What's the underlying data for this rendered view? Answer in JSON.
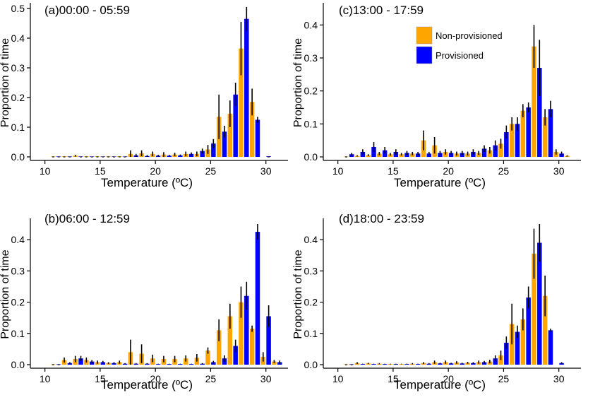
{
  "chart_data": [
    {
      "type": "bar",
      "panel_label": "(a)",
      "title": "00:00 - 05:59",
      "xlabel": "Temperature (ºC)",
      "ylabel": "Proportion of time",
      "xlim": [
        9,
        32
      ],
      "ylim": [
        0,
        0.5
      ],
      "xticks": [
        "10",
        "15",
        "20",
        "25",
        "30"
      ],
      "yticks": [
        "0.0",
        "0.1",
        "0.2",
        "0.3",
        "0.4",
        "0.5"
      ],
      "series": [
        {
          "name": "Non-provisioned",
          "color": "#FFA500",
          "x": [
            10.75,
            11.75,
            12.75,
            13.75,
            14.75,
            15.75,
            16.75,
            17.75,
            18.75,
            19.75,
            20.75,
            21.75,
            22.75,
            23.75,
            24.75,
            25.75,
            26.75,
            27.75,
            28.75
          ],
          "values": [
            0.0,
            0.002,
            0.004,
            0.002,
            0.002,
            0.002,
            0.002,
            0.01,
            0.012,
            0.01,
            0.008,
            0.008,
            0.01,
            0.01,
            0.025,
            0.135,
            0.145,
            0.365,
            0.185
          ],
          "err": [
            0,
            0,
            0.003,
            0,
            0,
            0,
            0,
            0.012,
            0.01,
            0.008,
            0.008,
            0.006,
            0.008,
            0.008,
            0.015,
            0.075,
            0.045,
            0.09,
            0.045
          ]
        },
        {
          "name": "Provisioned",
          "color": "#0000FF",
          "x": [
            11.25,
            12.25,
            13.25,
            14.25,
            15.25,
            16.25,
            17.25,
            18.25,
            19.25,
            20.25,
            21.25,
            22.25,
            23.25,
            24.25,
            25.25,
            26.25,
            27.25,
            28.25,
            29.25,
            30.25
          ],
          "values": [
            0.0,
            0.0,
            0.0,
            0.0,
            0.0,
            0.0,
            0.0,
            0.005,
            0.003,
            0.004,
            0.004,
            0.005,
            0.01,
            0.02,
            0.045,
            0.085,
            0.21,
            0.465,
            0.125,
            0.002
          ],
          "err": [
            0,
            0,
            0,
            0,
            0,
            0,
            0,
            0.005,
            0.003,
            0.003,
            0.003,
            0.003,
            0.005,
            0.008,
            0.015,
            0.02,
            0.04,
            0.04,
            0.01,
            0
          ]
        }
      ]
    },
    {
      "type": "bar",
      "panel_label": "(b)",
      "title": "06:00 - 12:59",
      "xlabel": "Temperature (ºC)",
      "ylabel": "Proportion of time",
      "xlim": [
        9,
        32
      ],
      "ylim": [
        0,
        0.45
      ],
      "xticks": [
        "10",
        "15",
        "20",
        "25",
        "30"
      ],
      "yticks": [
        "0.0",
        "0.1",
        "0.2",
        "0.3",
        "0.4"
      ],
      "series": [
        {
          "name": "Non-provisioned",
          "color": "#FFA500",
          "x": [
            10.75,
            11.75,
            12.75,
            13.75,
            14.75,
            15.75,
            16.75,
            17.75,
            18.75,
            19.75,
            20.75,
            21.75,
            22.75,
            23.75,
            24.75,
            25.75,
            26.75,
            27.75,
            28.75,
            29.75,
            30.75
          ],
          "values": [
            0.0,
            0.015,
            0.018,
            0.015,
            0.008,
            0.005,
            0.008,
            0.04,
            0.035,
            0.02,
            0.018,
            0.018,
            0.02,
            0.022,
            0.045,
            0.11,
            0.155,
            0.2,
            0.115,
            0.025,
            0.01
          ],
          "err": [
            0,
            0.008,
            0.01,
            0.008,
            0.005,
            0.003,
            0.005,
            0.04,
            0.03,
            0.012,
            0.01,
            0.01,
            0.01,
            0.012,
            0.01,
            0.035,
            0.04,
            0.05,
            0.01,
            0.015,
            0.005
          ]
        },
        {
          "name": "Provisioned",
          "color": "#0000FF",
          "x": [
            11.25,
            12.25,
            13.25,
            14.25,
            15.25,
            16.25,
            17.25,
            18.25,
            19.25,
            20.25,
            21.25,
            22.25,
            23.25,
            24.25,
            25.25,
            26.25,
            27.25,
            28.25,
            29.25,
            30.25,
            31.25
          ],
          "values": [
            0.0,
            0.005,
            0.02,
            0.01,
            0.008,
            0.005,
            0.003,
            0.003,
            0.003,
            0.002,
            0.002,
            0.002,
            0.002,
            0.003,
            0.008,
            0.02,
            0.06,
            0.22,
            0.425,
            0.155,
            0.008
          ],
          "err": [
            0,
            0.003,
            0.008,
            0.005,
            0.004,
            0.003,
            0.002,
            0.002,
            0.002,
            0.001,
            0.001,
            0.001,
            0.001,
            0.002,
            0.004,
            0.01,
            0.02,
            0.045,
            0.025,
            0.035,
            0.005
          ]
        }
      ]
    },
    {
      "type": "bar",
      "panel_label": "(c)",
      "title": "13:00 - 17:59",
      "xlabel": "Temperature (ºC)",
      "ylabel": "Proportion of time",
      "xlim": [
        9,
        32
      ],
      "ylim": [
        0,
        0.45
      ],
      "xticks": [
        "10",
        "15",
        "20",
        "25",
        "30"
      ],
      "yticks": [
        "0.0",
        "0.1",
        "0.2",
        "0.3",
        "0.4"
      ],
      "legend": {
        "position": "top-center",
        "entries": [
          "Non-provisioned",
          "Provisioned"
        ]
      },
      "series": [
        {
          "name": "Non-provisioned",
          "color": "#FFA500",
          "x": [
            10.75,
            11.75,
            12.75,
            13.75,
            14.75,
            15.75,
            16.75,
            17.75,
            18.75,
            19.75,
            20.75,
            21.75,
            22.75,
            23.75,
            24.75,
            25.75,
            26.75,
            27.75,
            28.75,
            29.75,
            30.75
          ],
          "values": [
            0.0,
            0.003,
            0.005,
            0.01,
            0.008,
            0.008,
            0.01,
            0.05,
            0.035,
            0.015,
            0.01,
            0.01,
            0.012,
            0.02,
            0.04,
            0.1,
            0.14,
            0.335,
            0.12,
            0.015,
            0.003
          ],
          "err": [
            0,
            0.002,
            0.003,
            0.005,
            0.004,
            0.004,
            0.005,
            0.03,
            0.025,
            0.008,
            0.006,
            0.006,
            0.006,
            0.01,
            0.015,
            0.02,
            0.02,
            0.065,
            0.025,
            0.008,
            0.002
          ]
        },
        {
          "name": "Provisioned",
          "color": "#0000FF",
          "x": [
            11.25,
            12.25,
            13.25,
            14.25,
            15.25,
            16.25,
            17.25,
            18.25,
            19.25,
            20.25,
            21.25,
            22.25,
            23.25,
            24.25,
            25.25,
            26.25,
            27.25,
            28.25,
            29.25,
            30.25
          ],
          "values": [
            0.008,
            0.015,
            0.03,
            0.02,
            0.015,
            0.012,
            0.01,
            0.01,
            0.012,
            0.012,
            0.012,
            0.015,
            0.025,
            0.035,
            0.075,
            0.1,
            0.15,
            0.27,
            0.145,
            0.01
          ],
          "err": [
            0.004,
            0.008,
            0.015,
            0.01,
            0.008,
            0.006,
            0.005,
            0.005,
            0.006,
            0.006,
            0.006,
            0.008,
            0.01,
            0.015,
            0.02,
            0.02,
            0.015,
            0.085,
            0.025,
            0.006
          ]
        }
      ]
    },
    {
      "type": "bar",
      "panel_label": "(d)",
      "title": "18:00 - 23:59",
      "xlabel": "Temperature (ºC)",
      "ylabel": "Proportion of time",
      "xlim": [
        9,
        32
      ],
      "ylim": [
        0,
        0.45
      ],
      "xticks": [
        "10",
        "15",
        "20",
        "25",
        "30"
      ],
      "yticks": [
        "0.0",
        "0.1",
        "0.2",
        "0.3",
        "0.4"
      ],
      "series": [
        {
          "name": "Non-provisioned",
          "color": "#FFA500",
          "x": [
            10.75,
            11.75,
            12.75,
            13.75,
            14.75,
            15.75,
            16.75,
            17.75,
            18.75,
            19.75,
            20.75,
            21.75,
            22.75,
            23.75,
            24.75,
            25.75,
            26.75,
            27.75,
            28.75
          ],
          "values": [
            0.0,
            0.005,
            0.004,
            0.003,
            0.002,
            0.002,
            0.003,
            0.005,
            0.008,
            0.008,
            0.007,
            0.006,
            0.008,
            0.01,
            0.03,
            0.13,
            0.145,
            0.355,
            0.22
          ],
          "err": [
            0,
            0.003,
            0.002,
            0.002,
            0.001,
            0.001,
            0.002,
            0.003,
            0.005,
            0.005,
            0.004,
            0.003,
            0.005,
            0.006,
            0.015,
            0.065,
            0.035,
            0.08,
            0.065
          ]
        },
        {
          "name": "Provisioned",
          "color": "#0000FF",
          "x": [
            11.25,
            12.25,
            13.25,
            14.25,
            15.25,
            16.25,
            17.25,
            18.25,
            19.25,
            20.25,
            21.25,
            22.25,
            23.25,
            24.25,
            25.25,
            26.25,
            27.25,
            28.25,
            29.25,
            30.25
          ],
          "values": [
            0.0,
            0.002,
            0.002,
            0.002,
            0.002,
            0.002,
            0.002,
            0.003,
            0.004,
            0.004,
            0.004,
            0.005,
            0.008,
            0.02,
            0.07,
            0.105,
            0.215,
            0.39,
            0.11,
            0.005
          ],
          "err": [
            0,
            0.001,
            0.001,
            0.001,
            0.001,
            0.001,
            0.001,
            0.002,
            0.002,
            0.002,
            0.002,
            0.003,
            0.004,
            0.01,
            0.02,
            0.02,
            0.035,
            0.06,
            0.005,
            0.003
          ]
        }
      ]
    }
  ]
}
